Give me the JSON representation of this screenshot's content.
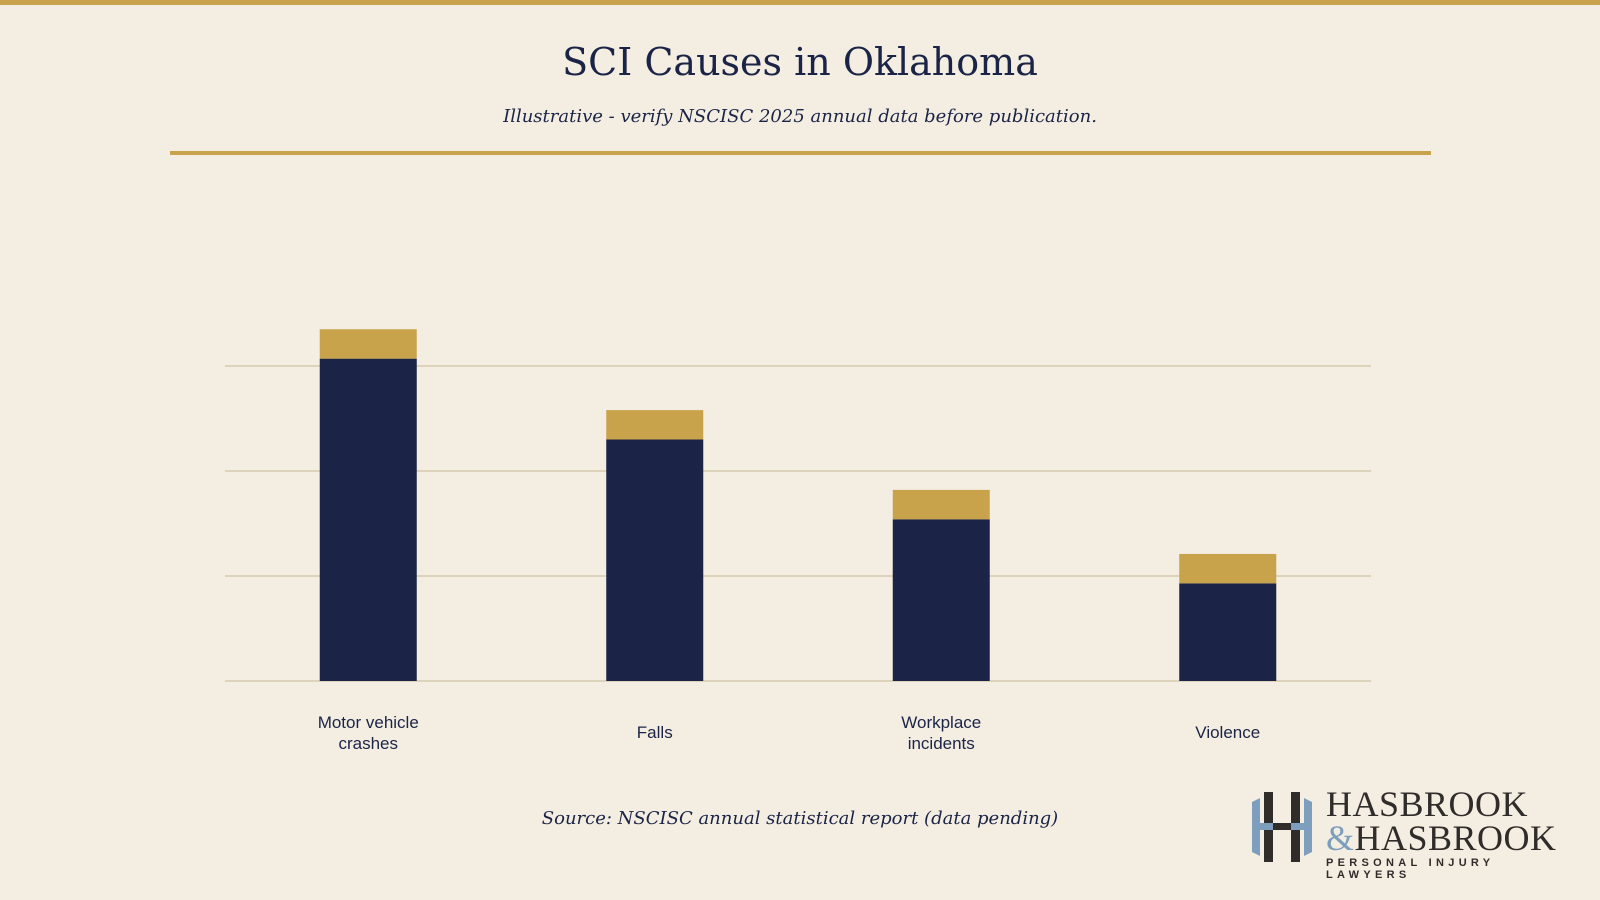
{
  "title": "SCI Causes in Oklahoma",
  "subtitle": "Illustrative - verify NSCISC 2025 annual data before publication.",
  "source": "Source: NSCISC annual statistical report (data pending)",
  "logo": {
    "line1": "HASBROOK",
    "amp": "&",
    "line2": "HASBROOK",
    "tagline": "PERSONAL INJURY LAWYERS"
  },
  "colors": {
    "background": "#f4ede1",
    "accent": "#c9a24c",
    "bar": "#1b2447",
    "grid": "#ddd3bb",
    "logo_blue": "#7d9fbd"
  },
  "chart_data": {
    "type": "bar",
    "categories": [
      [
        "Motor vehicle",
        "crashes"
      ],
      [
        "Falls"
      ],
      [
        "Workplace",
        "incidents"
      ],
      [
        "Violence"
      ]
    ],
    "series": [
      {
        "values": [
          30.7,
          23.0,
          15.4,
          9.3
        ],
        "color": "#1b2447"
      },
      {
        "values": [
          2.8,
          2.8,
          2.8,
          2.8
        ],
        "color": "#c9a24c"
      }
    ],
    "stacked": true,
    "ylim": [
      0,
      30
    ],
    "gridlines": [
      0,
      10,
      20,
      30
    ],
    "grid": true,
    "y_tick_labels_shown": false,
    "legend": "none"
  }
}
